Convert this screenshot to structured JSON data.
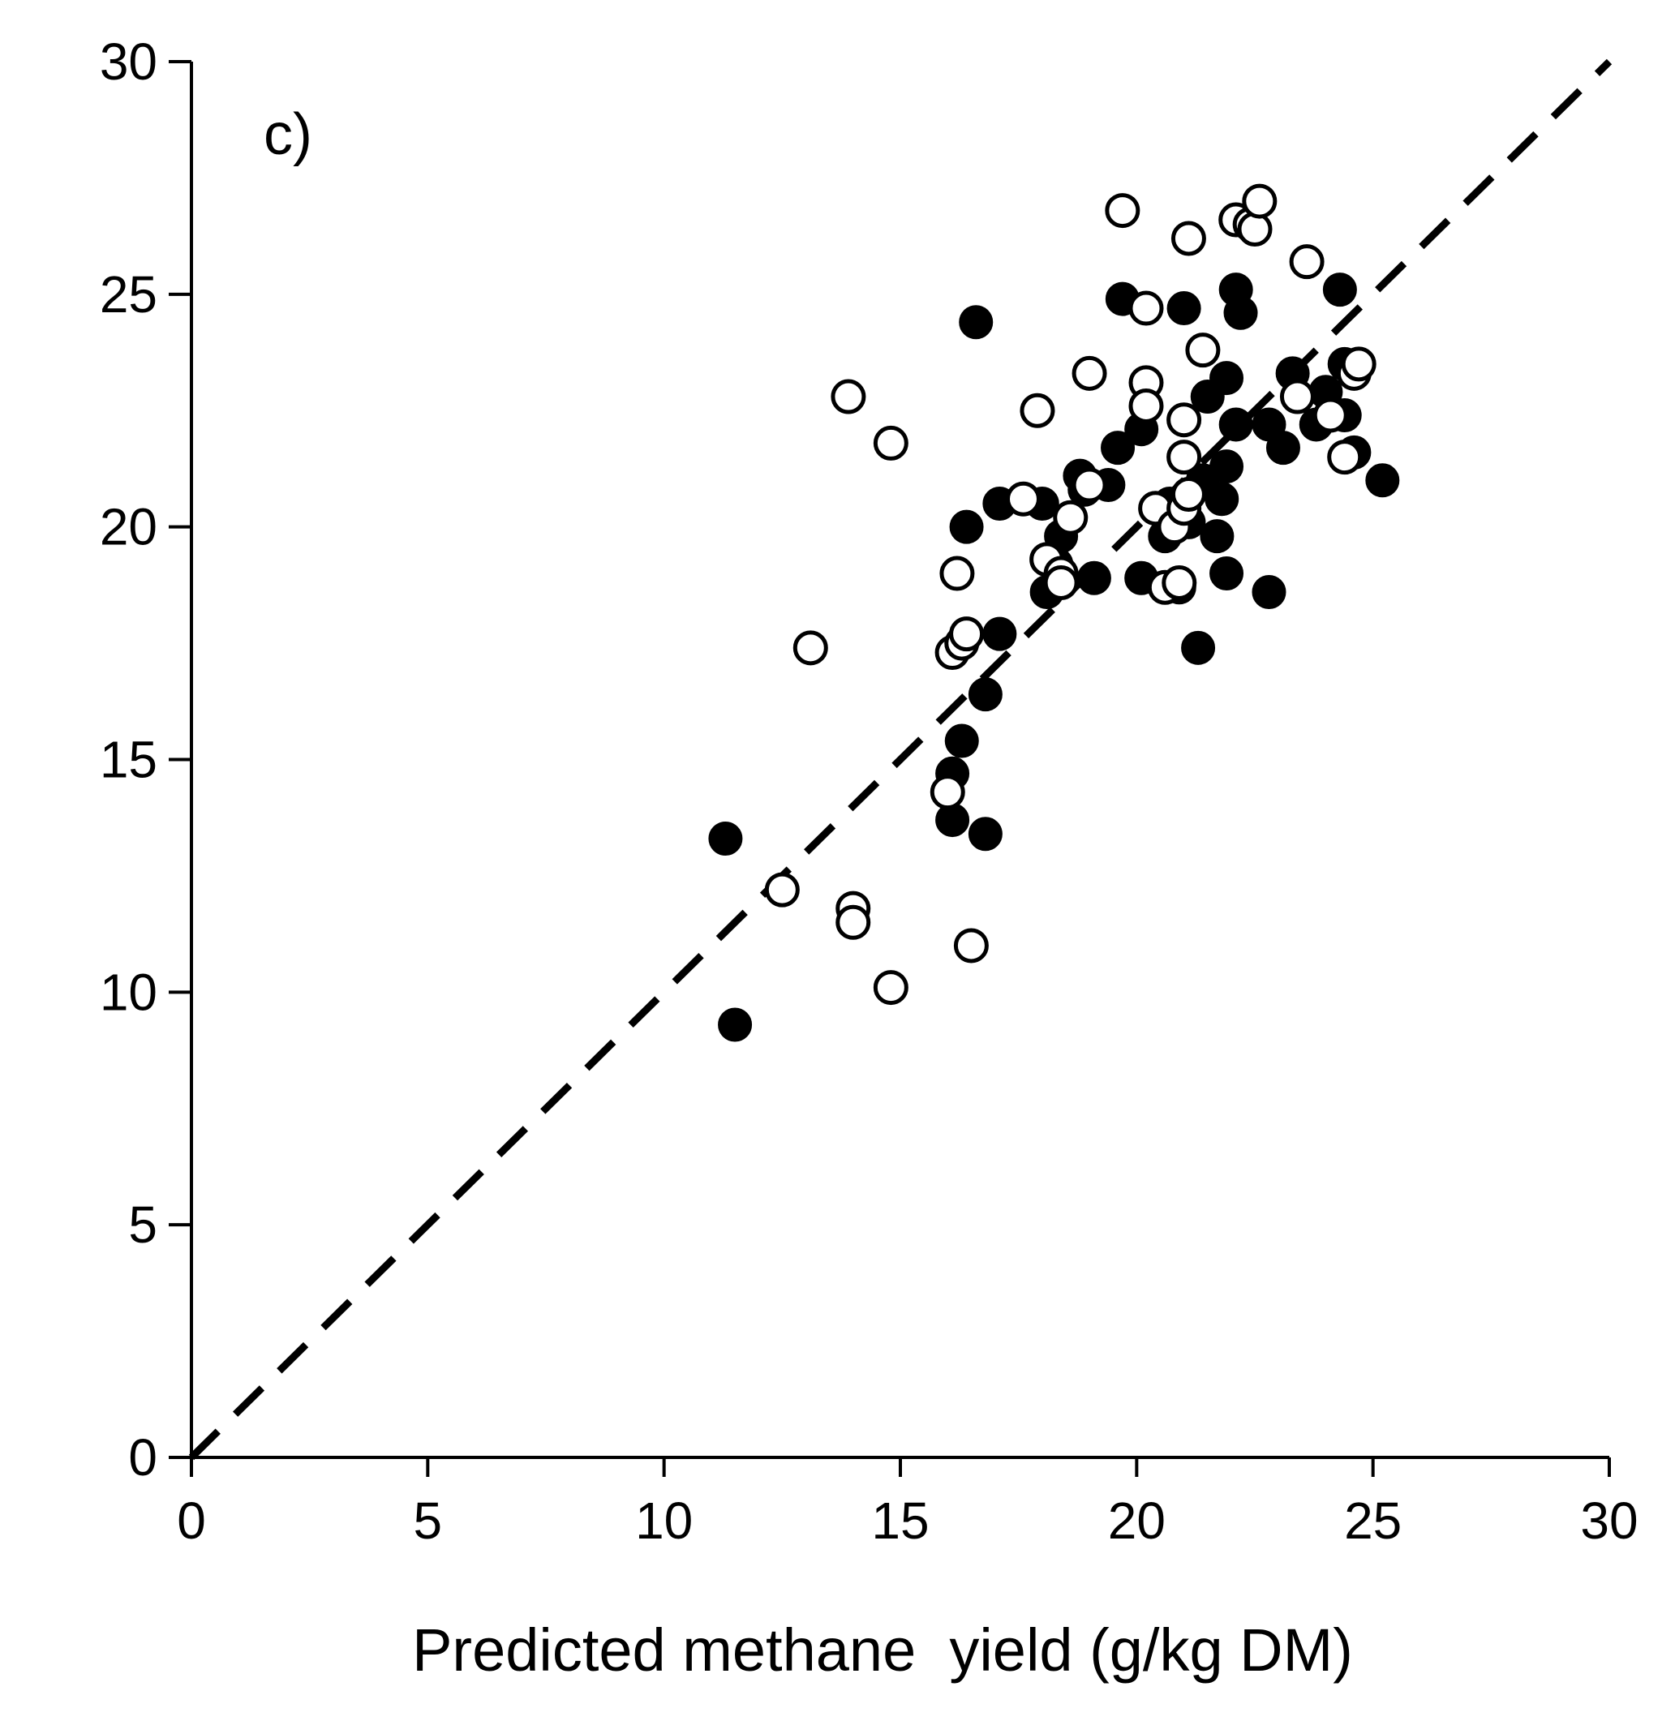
{
  "chart_data": {
    "type": "scatter",
    "panel_label": "c)",
    "title": "",
    "xlabel": "Predicted methane  yield (g/kg DM)",
    "ylabel": "",
    "xlim": [
      0,
      30
    ],
    "ylim": [
      0,
      30
    ],
    "x_ticks": [
      "0",
      "5",
      "10",
      "15",
      "20",
      "25",
      "30"
    ],
    "y_ticks": [
      "0",
      "5",
      "10",
      "15",
      "20",
      "25",
      "30"
    ],
    "grid": false,
    "reference_line": {
      "style": "dashed",
      "from": [
        0,
        0
      ],
      "to": [
        30,
        30
      ],
      "color": "#000000"
    },
    "series": [
      {
        "name": "filled",
        "marker": "filled-circle",
        "color": "#000000",
        "points": [
          [
            11.3,
            13.3
          ],
          [
            11.5,
            9.3
          ],
          [
            16.1,
            13.7
          ],
          [
            16.1,
            14.7
          ],
          [
            16.3,
            15.4
          ],
          [
            16.8,
            16.4
          ],
          [
            16.8,
            13.4
          ],
          [
            17.1,
            17.7
          ],
          [
            16.4,
            20.0
          ],
          [
            16.6,
            24.4
          ],
          [
            17.1,
            20.5
          ],
          [
            18.0,
            20.5
          ],
          [
            18.1,
            18.6
          ],
          [
            18.3,
            19.2
          ],
          [
            18.4,
            19.8
          ],
          [
            18.8,
            21.1
          ],
          [
            18.9,
            20.8
          ],
          [
            19.1,
            18.9
          ],
          [
            19.4,
            20.9
          ],
          [
            19.6,
            21.7
          ],
          [
            19.7,
            24.9
          ],
          [
            20.1,
            22.1
          ],
          [
            20.1,
            18.9
          ],
          [
            20.6,
            19.8
          ],
          [
            20.7,
            20.5
          ],
          [
            20.9,
            18.7
          ],
          [
            21.0,
            24.7
          ],
          [
            21.1,
            20.1
          ],
          [
            21.3,
            17.4
          ],
          [
            21.4,
            21.0
          ],
          [
            21.5,
            22.8
          ],
          [
            21.7,
            19.8
          ],
          [
            21.8,
            20.6
          ],
          [
            21.9,
            19.0
          ],
          [
            21.9,
            21.3
          ],
          [
            21.9,
            23.2
          ],
          [
            22.1,
            25.1
          ],
          [
            22.2,
            24.6
          ],
          [
            22.1,
            22.2
          ],
          [
            22.8,
            18.6
          ],
          [
            22.8,
            22.2
          ],
          [
            23.1,
            21.7
          ],
          [
            23.3,
            23.3
          ],
          [
            23.8,
            22.2
          ],
          [
            24.0,
            22.9
          ],
          [
            24.3,
            25.1
          ],
          [
            24.4,
            23.5
          ],
          [
            24.6,
            21.6
          ],
          [
            25.2,
            21.0
          ],
          [
            24.4,
            22.4
          ]
        ]
      },
      {
        "name": "open",
        "marker": "open-circle",
        "color": "#000000",
        "points": [
          [
            12.5,
            12.2
          ],
          [
            13.1,
            17.4
          ],
          [
            13.9,
            22.8
          ],
          [
            14.0,
            11.8
          ],
          [
            14.0,
            11.5
          ],
          [
            14.8,
            21.8
          ],
          [
            14.8,
            10.1
          ],
          [
            16.0,
            14.3
          ],
          [
            16.1,
            17.3
          ],
          [
            16.2,
            19.0
          ],
          [
            16.3,
            17.5
          ],
          [
            16.4,
            17.7
          ],
          [
            16.5,
            11.0
          ],
          [
            17.6,
            20.6
          ],
          [
            17.9,
            22.5
          ],
          [
            18.1,
            19.3
          ],
          [
            18.4,
            19.0
          ],
          [
            18.4,
            18.8
          ],
          [
            18.6,
            20.2
          ],
          [
            19.0,
            23.3
          ],
          [
            19.0,
            20.9
          ],
          [
            19.7,
            26.8
          ],
          [
            20.2,
            24.7
          ],
          [
            20.2,
            23.1
          ],
          [
            20.2,
            22.6
          ],
          [
            20.4,
            20.4
          ],
          [
            20.6,
            18.7
          ],
          [
            20.8,
            20.0
          ],
          [
            20.9,
            18.8
          ],
          [
            21.0,
            20.4
          ],
          [
            21.0,
            21.5
          ],
          [
            21.0,
            22.3
          ],
          [
            21.1,
            26.2
          ],
          [
            21.1,
            20.7
          ],
          [
            21.4,
            23.8
          ],
          [
            22.1,
            26.6
          ],
          [
            22.4,
            26.5
          ],
          [
            22.5,
            26.4
          ],
          [
            22.6,
            27.0
          ],
          [
            23.4,
            22.8
          ],
          [
            23.6,
            25.7
          ],
          [
            24.1,
            22.4
          ],
          [
            24.4,
            21.5
          ],
          [
            24.6,
            23.3
          ],
          [
            24.7,
            23.5
          ]
        ]
      }
    ]
  }
}
